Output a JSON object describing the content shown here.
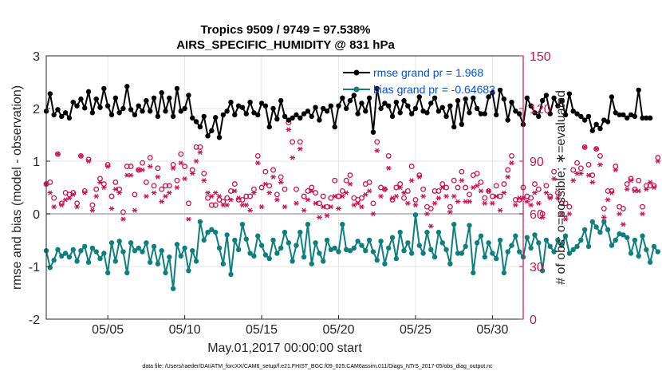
{
  "chart_data": {
    "type": "line",
    "title": "Tropics 9509 / 9749 = 97.538%",
    "subtitle": "AIRS_SPECIFIC_HUMIDITY @ 831 hPa",
    "xlabel": "May.01,2017 00:00:00 start",
    "ylabel": "rmse and bias (model - observation)",
    "y2label": "# of obs: o=possible; ∗=evaluated",
    "x_range": [
      1,
      32
    ],
    "ylim": [
      -2,
      3
    ],
    "y2lim": [
      0,
      150
    ],
    "xticks": [
      5,
      10,
      15,
      20,
      25,
      30
    ],
    "xtick_labels": [
      "05/05",
      "05/10",
      "05/15",
      "05/20",
      "05/25",
      "05/30"
    ],
    "yticks": [
      -2,
      -1,
      0,
      1,
      2,
      3
    ],
    "ytick_labels": [
      "-2",
      "-1",
      "0",
      "1",
      "2",
      "3"
    ],
    "y2ticks": [
      0,
      30,
      60,
      90,
      120,
      150
    ],
    "y2tick_labels": [
      "0",
      "30",
      "60",
      "90",
      "120",
      "150"
    ],
    "legend_position": "top-right",
    "zero_line": 0,
    "colors": {
      "rmse": "#000000",
      "bias": "#0e7f7f",
      "obs": "#cc1455",
      "zero": "#bfbfbf",
      "axis": "#262626"
    },
    "series": [
      {
        "name": "rmse",
        "legend": "rmse grand pr = 1.968",
        "values": [
          1.95,
          2.28,
          1.88,
          1.98,
          1.85,
          1.92,
          1.82,
          2.12,
          2.05,
          2.18,
          2.01,
          2.32,
          1.92,
          2.18,
          2.02,
          2.38,
          2.05,
          1.88,
          2.2,
          1.92,
          2.0,
          2.42,
          1.98,
          1.88,
          2.05,
          1.95,
          2.15,
          1.95,
          2.2,
          1.85,
          2.3,
          1.95,
          2.2,
          1.85,
          2.38,
          1.95,
          2.0,
          2.25,
          1.82,
          1.75,
          1.65,
          1.85,
          1.48,
          1.58,
          1.83,
          1.45,
          1.88,
          1.95,
          2.12,
          1.88,
          2.05,
          2.02,
          1.9,
          2.12,
          1.92,
          1.88,
          2.1,
          2.05,
          1.65,
          2.0,
          1.8,
          2.15,
          1.85,
          1.78,
          1.82,
          1.88,
          1.82,
          1.9,
          1.95,
          1.85,
          2.02,
          1.78,
          2.0,
          1.95,
          2.05,
          1.65,
          2.05,
          2.2,
          2.0,
          2.15,
          2.25,
          1.9,
          2.1,
          1.95,
          2.2,
          1.55,
          2.38,
          2.0,
          2.1,
          2.05,
          1.85,
          2.12,
          1.92,
          2.15,
          2.05,
          1.9,
          2.0,
          2.22,
          1.95,
          1.92,
          2.1,
          2.2,
          1.95,
          2.02,
          1.85,
          2.05,
          1.65,
          2.15,
          1.7,
          2.18,
          1.92,
          2.2,
          2.0,
          1.9,
          1.9,
          2.22,
          2.3,
          1.88,
          2.35,
          2.18,
          1.78,
          2.12,
          1.95,
          1.9,
          1.7,
          2.2,
          2.05,
          1.92,
          1.85,
          2.15,
          2.25,
          1.9,
          2.2,
          2.05,
          2.15,
          1.88,
          2.28,
          1.95,
          1.9,
          1.85,
          1.78,
          1.85,
          1.58,
          1.7,
          1.62,
          1.78,
          1.75,
          2.22,
          1.92,
          1.88,
          1.88,
          1.82,
          1.88,
          1.85,
          2.35,
          1.82,
          1.82,
          1.82
        ]
      },
      {
        "name": "bias",
        "legend": "bias grand pr = -0.64683",
        "values": [
          -0.7,
          -1.02,
          -0.88,
          -0.68,
          -0.8,
          -0.75,
          -0.82,
          -0.68,
          -0.9,
          -0.7,
          -0.62,
          -0.92,
          -0.65,
          -0.72,
          -0.85,
          -0.75,
          -1.12,
          -0.55,
          -0.9,
          -0.52,
          -0.72,
          -1.12,
          -0.55,
          -0.7,
          -0.65,
          -0.72,
          -0.55,
          -0.92,
          -0.62,
          -0.95,
          -0.7,
          -1.12,
          -0.82,
          -1.42,
          -0.58,
          -0.8,
          -0.65,
          -1.08,
          -0.7,
          -0.9,
          -0.15,
          -0.5,
          -0.35,
          -0.3,
          -0.35,
          -0.65,
          -0.95,
          -0.4,
          -1.15,
          -0.5,
          -0.68,
          -0.2,
          -0.48,
          -0.75,
          -0.8,
          -0.42,
          -0.6,
          -0.78,
          -0.85,
          -0.5,
          -0.75,
          -0.65,
          -0.35,
          -0.55,
          -0.9,
          -0.6,
          -0.35,
          -0.82,
          -0.2,
          -0.95,
          -0.55,
          -0.75,
          -0.9,
          -0.5,
          -0.68,
          -0.65,
          -0.72,
          -0.2,
          -0.68,
          -0.7,
          -0.65,
          -0.52,
          -0.6,
          -0.7,
          -0.5,
          -0.72,
          -0.88,
          -0.52,
          -0.95,
          -0.65,
          -0.45,
          -0.85,
          -0.35,
          -0.7,
          -0.55,
          -0.75,
          -0.02,
          -0.6,
          -0.75,
          -0.35,
          -0.68,
          -0.82,
          -0.35,
          -0.55,
          -0.68,
          -0.95,
          -0.2,
          -0.75,
          -0.75,
          -0.62,
          -0.22,
          -1.12,
          -0.55,
          -0.42,
          -0.82,
          -0.55,
          -0.75,
          -0.85,
          -0.5,
          -1.12,
          -0.72,
          -0.6,
          -0.42,
          -0.72,
          -0.82,
          -0.45,
          -0.65,
          -0.4,
          -0.55,
          -1.08,
          -0.5,
          -0.62,
          -0.72,
          -0.5,
          -0.6,
          -0.42,
          -0.75,
          -0.68,
          -0.62,
          -0.5,
          -0.3,
          -0.62,
          -0.15,
          -0.25,
          -0.35,
          -0.15,
          -0.3,
          -0.6,
          -0.5,
          -0.38,
          -0.4,
          -0.45,
          -0.75,
          -0.5,
          -0.8,
          -0.42,
          -0.68,
          -0.92,
          -0.62,
          -0.72
        ]
      },
      {
        "name": "possible",
        "marker": "o",
        "values": [
          77,
          78,
          69,
          94,
          66,
          72,
          71,
          72,
          66,
          93,
          73,
          91,
          65,
          74,
          80,
          77,
          88,
          70,
          78,
          74,
          61,
          87,
          87,
          71,
          85,
          89,
          78,
          92,
          76,
          86,
          74,
          76,
          76,
          88,
          79,
          94,
          87,
          66,
          85,
          98,
          98,
          83,
          69,
          65,
          65,
          68,
          67,
          69,
          73,
          77,
          68,
          68,
          70,
          70,
          74,
          93,
          75,
          84,
          76,
          85,
          71,
          81,
          74,
          112,
          101,
          74,
          101,
          70,
          73,
          75,
          72,
          66,
          70,
          64,
          69,
          79,
          70,
          73,
          79,
          82,
          69,
          68,
          69,
          77,
          78,
          66,
          101,
          75,
          74,
          93,
          68,
          75,
          77,
          69,
          73,
          87,
          68,
          82,
          74,
          64,
          63,
          73,
          73,
          77,
          75,
          64,
          79,
          75,
          84,
          75,
          71,
          82,
          83,
          78,
          69,
          73,
          70,
          76,
          70,
          77,
          85,
          93,
          68,
          68,
          75,
          70,
          69,
          77,
          74,
          60,
          76,
          70,
          84,
          72,
          66,
          66,
          64,
          85,
          89,
          86,
          98,
          88,
          82,
          97,
          93,
          63,
          73,
          73,
          87,
          64,
          63,
          77,
          80,
          74,
          79,
          64,
          76,
          76,
          76,
          92
        ]
      },
      {
        "name": "evaluated",
        "marker": "*",
        "values": [
          77,
          72,
          64,
          94,
          65,
          68,
          69,
          71,
          64,
          93,
          72,
          90,
          62,
          70,
          78,
          75,
          87,
          63,
          74,
          72,
          57,
          82,
          82,
          62,
          85,
          85,
          70,
          87,
          72,
          81,
          67,
          70,
          72,
          86,
          75,
          89,
          80,
          57,
          83,
          90,
          95,
          79,
          72,
          70,
          72,
          70,
          65,
          65,
          68,
          73,
          69,
          65,
          65,
          62,
          72,
          89,
          64,
          77,
          72,
          81,
          68,
          78,
          64,
          108,
          92,
          66,
          97,
          62,
          68,
          73,
          66,
          58,
          64,
          59,
          64,
          70,
          63,
          70,
          72,
          77,
          65,
          66,
          64,
          71,
          73,
          60,
          96,
          70,
          74,
          86,
          69,
          70,
          75,
          72,
          66,
          79,
          65,
          81,
          70,
          60,
          53,
          66,
          69,
          75,
          70,
          61,
          70,
          67,
          79,
          67,
          67,
          75,
          76,
          73,
          66,
          73,
          66,
          70,
          62,
          72,
          81,
          89,
          65,
          69,
          69,
          67,
          65,
          72,
          66,
          58,
          72,
          69,
          80,
          69,
          60,
          57,
          60,
          79,
          83,
          83,
          98,
          82,
          78,
          97,
          88,
          58,
          68,
          72,
          85,
          60,
          54,
          74,
          79,
          73,
          73,
          60,
          74,
          78,
          75,
          90
        ]
      }
    ]
  },
  "footnote": "data file: /Users/raeder/DAI/ATM_forcXX/CAM6_setup/f.e21.FHIST_BGC.f09_025.CAM6assim.011/Diags_NTrS_2017-05/obs_diag_output.nc"
}
